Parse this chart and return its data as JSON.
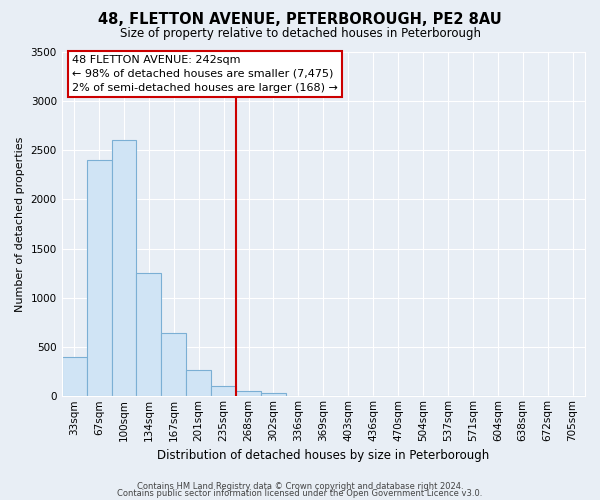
{
  "title": "48, FLETTON AVENUE, PETERBOROUGH, PE2 8AU",
  "subtitle": "Size of property relative to detached houses in Peterborough",
  "xlabel": "Distribution of detached houses by size in Peterborough",
  "ylabel": "Number of detached properties",
  "bin_labels": [
    "33sqm",
    "67sqm",
    "100sqm",
    "134sqm",
    "167sqm",
    "201sqm",
    "235sqm",
    "268sqm",
    "302sqm",
    "336sqm",
    "369sqm",
    "403sqm",
    "436sqm",
    "470sqm",
    "504sqm",
    "537sqm",
    "571sqm",
    "604sqm",
    "638sqm",
    "672sqm",
    "705sqm"
  ],
  "bar_values": [
    400,
    2400,
    2600,
    1250,
    640,
    270,
    105,
    55,
    30,
    5,
    0,
    0,
    0,
    0,
    0,
    0,
    0,
    0,
    0,
    0,
    0
  ],
  "bar_color": "#d0e4f5",
  "bar_edge_color": "#7bafd4",
  "vline_x": 6.5,
  "vline_color": "#cc0000",
  "ylim": [
    0,
    3500
  ],
  "yticks": [
    0,
    500,
    1000,
    1500,
    2000,
    2500,
    3000,
    3500
  ],
  "annotation_title": "48 FLETTON AVENUE: 242sqm",
  "annotation_line1": "← 98% of detached houses are smaller (7,475)",
  "annotation_line2": "2% of semi-detached houses are larger (168) →",
  "annotation_box_color": "#ffffff",
  "annotation_box_edge_color": "#cc0000",
  "footer_line1": "Contains HM Land Registry data © Crown copyright and database right 2024.",
  "footer_line2": "Contains public sector information licensed under the Open Government Licence v3.0.",
  "background_color": "#e8eef5",
  "plot_bg_color": "#e8eef5",
  "grid_color": "#ffffff",
  "title_fontsize": 10.5,
  "subtitle_fontsize": 8.5,
  "ylabel_fontsize": 8,
  "xlabel_fontsize": 8.5,
  "tick_fontsize": 7.5,
  "annotation_fontsize": 8
}
